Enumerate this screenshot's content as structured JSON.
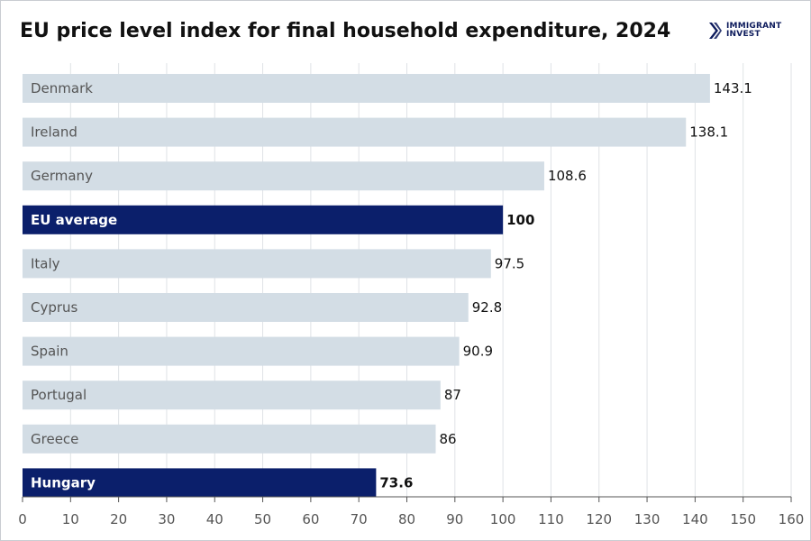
{
  "title": "EU price level index for final household expenditure, 2024",
  "logo": {
    "line1": "IMMIGRANT",
    "line2": "INVEST",
    "icon": "chevron-logo-icon"
  },
  "colors": {
    "highlight": "#0b1f6b",
    "bar": "#d3dde5",
    "gridline": "#dfe2e6",
    "axis": "#555555",
    "label": "#555555",
    "value": "#111111"
  },
  "chart_data": {
    "type": "bar",
    "orientation": "horizontal",
    "title": "EU price level index for final household expenditure, 2024",
    "categories": [
      "Denmark",
      "Ireland",
      "Germany",
      "EU average",
      "Italy",
      "Cyprus",
      "Spain",
      "Portugal",
      "Greece",
      "Hungary"
    ],
    "values": [
      143.1,
      138.1,
      108.6,
      100,
      97.5,
      92.8,
      90.9,
      87,
      86,
      73.6
    ],
    "value_labels": [
      "143.1",
      "138.1",
      "108.6",
      "100",
      "97.5",
      "92.8",
      "90.9",
      "87",
      "86",
      "73.6"
    ],
    "highlighted": [
      false,
      false,
      false,
      true,
      false,
      false,
      false,
      false,
      false,
      true
    ],
    "xlim": [
      0,
      160
    ],
    "xticks": [
      0,
      10,
      20,
      30,
      40,
      50,
      60,
      70,
      80,
      90,
      100,
      110,
      120,
      130,
      140,
      150,
      160
    ],
    "grid": true,
    "xlabel": "",
    "ylabel": ""
  }
}
